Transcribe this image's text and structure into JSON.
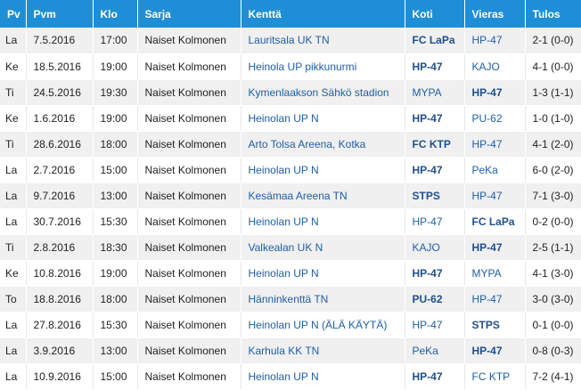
{
  "columns": {
    "pv": "Pv",
    "pvm": "Pvm",
    "klo": "Klo",
    "sarja": "Sarja",
    "kentta": "Kenttä",
    "koti": "Koti",
    "vieras": "Vieras",
    "tulos": "Tulos"
  },
  "rows": [
    {
      "pv": "La",
      "pvm": "7.5.2016",
      "klo": "17:00",
      "sarja": "Naiset Kolmonen",
      "kentta": "Lauritsala UK TN",
      "koti": "FC LaPa",
      "vieras": "HP-47",
      "tulos": "2-1 (0-0)",
      "winner": "home"
    },
    {
      "pv": "Ke",
      "pvm": "18.5.2016",
      "klo": "19:00",
      "sarja": "Naiset Kolmonen",
      "kentta": "Heinola UP pikkunurmi",
      "koti": "HP-47",
      "vieras": "KAJO",
      "tulos": "4-1 (0-0)",
      "winner": "home"
    },
    {
      "pv": "Ti",
      "pvm": "24.5.2016",
      "klo": "19:30",
      "sarja": "Naiset Kolmonen",
      "kentta": "Kymenlaakson Sähkö stadion",
      "koti": "MYPA",
      "vieras": "HP-47",
      "tulos": "1-3 (1-1)",
      "winner": "away"
    },
    {
      "pv": "Ke",
      "pvm": "1.6.2016",
      "klo": "19:00",
      "sarja": "Naiset Kolmonen",
      "kentta": "Heinolan UP N",
      "koti": "HP-47",
      "vieras": "PU-62",
      "tulos": "1-0 (1-0)",
      "winner": "home"
    },
    {
      "pv": "Ti",
      "pvm": "28.6.2016",
      "klo": "18:00",
      "sarja": "Naiset Kolmonen",
      "kentta": "Arto Tolsa Areena, Kotka",
      "koti": "FC KTP",
      "vieras": "HP-47",
      "tulos": "4-1 (2-0)",
      "winner": "home"
    },
    {
      "pv": "La",
      "pvm": "2.7.2016",
      "klo": "15:00",
      "sarja": "Naiset Kolmonen",
      "kentta": "Heinolan UP N",
      "koti": "HP-47",
      "vieras": "PeKa",
      "tulos": "6-0 (2-0)",
      "winner": "home"
    },
    {
      "pv": "La",
      "pvm": "9.7.2016",
      "klo": "13:00",
      "sarja": "Naiset Kolmonen",
      "kentta": "Kesämaa Areena TN",
      "koti": "STPS",
      "vieras": "HP-47",
      "tulos": "7-1 (3-0)",
      "winner": "home"
    },
    {
      "pv": "La",
      "pvm": "30.7.2016",
      "klo": "15:30",
      "sarja": "Naiset Kolmonen",
      "kentta": "Heinolan UP N",
      "koti": "HP-47",
      "vieras": "FC LaPa",
      "tulos": "0-2 (0-0)",
      "winner": "away"
    },
    {
      "pv": "Ti",
      "pvm": "2.8.2016",
      "klo": "18:30",
      "sarja": "Naiset Kolmonen",
      "kentta": "Valkealan UK N",
      "koti": "KAJO",
      "vieras": "HP-47",
      "tulos": "2-5 (1-1)",
      "winner": "away"
    },
    {
      "pv": "Ke",
      "pvm": "10.8.2016",
      "klo": "19:00",
      "sarja": "Naiset Kolmonen",
      "kentta": "Heinolan UP N",
      "koti": "HP-47",
      "vieras": "MYPA",
      "tulos": "4-1 (3-0)",
      "winner": "home"
    },
    {
      "pv": "To",
      "pvm": "18.8.2016",
      "klo": "18:00",
      "sarja": "Naiset Kolmonen",
      "kentta": "Hänninkenttä TN",
      "koti": "PU-62",
      "vieras": "HP-47",
      "tulos": "3-0 (3-0)",
      "winner": "home"
    },
    {
      "pv": "La",
      "pvm": "27.8.2016",
      "klo": "15:30",
      "sarja": "Naiset Kolmonen",
      "kentta": "Heinolan UP N (ÄLÄ KÄYTÄ)",
      "koti": "HP-47",
      "vieras": "STPS",
      "tulos": "0-1 (0-0)",
      "winner": "away"
    },
    {
      "pv": "La",
      "pvm": "3.9.2016",
      "klo": "13:00",
      "sarja": "Naiset Kolmonen",
      "kentta": "Karhula KK TN",
      "koti": "PeKa",
      "vieras": "HP-47",
      "tulos": "0-8 (0-3)",
      "winner": "away"
    },
    {
      "pv": "La",
      "pvm": "10.9.2016",
      "klo": "15:00",
      "sarja": "Naiset Kolmonen",
      "kentta": "Heinolan UP N",
      "koti": "HP-47",
      "vieras": "FC KTP",
      "tulos": "7-2 (4-1)",
      "winner": "home"
    }
  ],
  "colors": {
    "header_bg": "#1e8fd6",
    "link": "#1f5ea8",
    "row_alt": "#f0f0f0"
  }
}
